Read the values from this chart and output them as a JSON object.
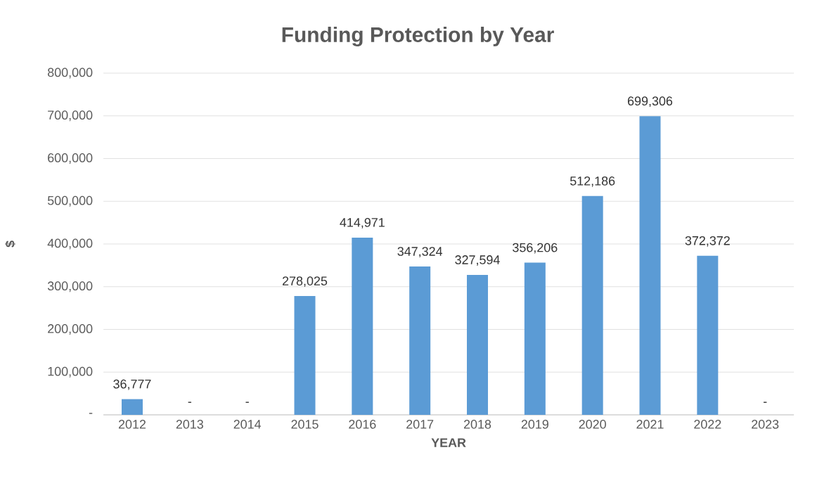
{
  "chart_data": {
    "type": "bar",
    "title": "Funding Protection by Year",
    "xlabel": "YEAR",
    "ylabel": "$",
    "categories": [
      "2012",
      "2013",
      "2014",
      "2015",
      "2016",
      "2017",
      "2018",
      "2019",
      "2020",
      "2021",
      "2022",
      "2023"
    ],
    "values": [
      36777,
      0,
      0,
      278025,
      414971,
      347324,
      327594,
      356206,
      512186,
      699306,
      372372,
      0
    ],
    "value_labels": [
      "36,777",
      "-",
      "-",
      "278,025",
      "414,971",
      "347,324",
      "327,594",
      "356,206",
      "512,186",
      "699,306",
      "372,372",
      "-"
    ],
    "color": "#5b9bd5",
    "ylim": [
      0,
      800000
    ],
    "yticks": [
      {
        "value": 0,
        "label": "-"
      },
      {
        "value": 100000,
        "label": "100,000"
      },
      {
        "value": 200000,
        "label": "200,000"
      },
      {
        "value": 300000,
        "label": "300,000"
      },
      {
        "value": 400000,
        "label": "400,000"
      },
      {
        "value": 500000,
        "label": "500,000"
      },
      {
        "value": 600000,
        "label": "600,000"
      },
      {
        "value": 700000,
        "label": "700,000"
      },
      {
        "value": 800000,
        "label": "800,000"
      }
    ],
    "grid": "y"
  }
}
